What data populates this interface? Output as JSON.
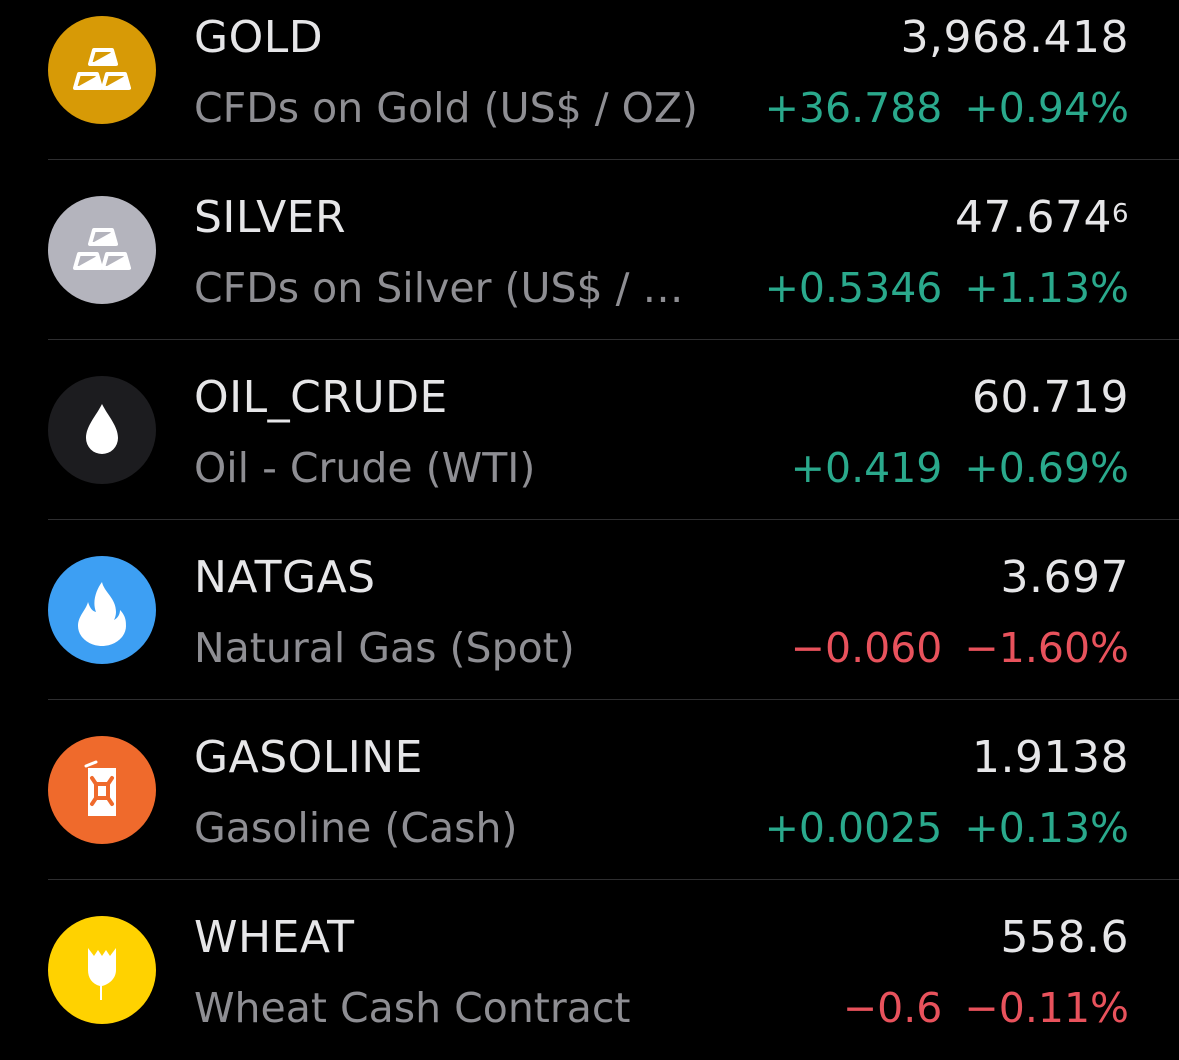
{
  "colors": {
    "up": "#2aa98c",
    "down": "#e8525c"
  },
  "items": [
    {
      "symbol": "GOLD",
      "description": "CFDs on Gold (US$ / OZ)",
      "price": "3,968.418",
      "price_sup": "",
      "change": "+36.788",
      "change_pct": "+0.94%",
      "direction": "up",
      "icon": "gold-bars-icon",
      "icon_color": "#d79a06"
    },
    {
      "symbol": "SILVER",
      "description": "CFDs on Silver (US$ / O…",
      "price": "47.674",
      "price_sup": "6",
      "change": "+0.5346",
      "change_pct": "+1.13%",
      "direction": "up",
      "icon": "silver-bars-icon",
      "icon_color": "#b4b4bd"
    },
    {
      "symbol": "OIL_CRUDE",
      "description": "Oil - Crude (WTI)",
      "price": "60.719",
      "price_sup": "",
      "change": "+0.419",
      "change_pct": "+0.69%",
      "direction": "up",
      "icon": "oil-drop-icon",
      "icon_color": "#1c1c1f"
    },
    {
      "symbol": "NATGAS",
      "description": "Natural Gas (Spot)",
      "price": "3.697",
      "price_sup": "",
      "change": "−0.060",
      "change_pct": "−1.60%",
      "direction": "down",
      "icon": "flame-icon",
      "icon_color": "#3d9ff3"
    },
    {
      "symbol": "GASOLINE",
      "description": "Gasoline (Cash)",
      "price": "1.9138",
      "price_sup": "",
      "change": "+0.0025",
      "change_pct": "+0.13%",
      "direction": "up",
      "icon": "jerrycan-icon",
      "icon_color": "#ef6a2c"
    },
    {
      "symbol": "WHEAT",
      "description": "Wheat Cash Contract",
      "price": "558.6",
      "price_sup": "",
      "change": "−0.6",
      "change_pct": "−0.11%",
      "direction": "down",
      "icon": "wheat-icon",
      "icon_color": "#ffd200"
    }
  ]
}
